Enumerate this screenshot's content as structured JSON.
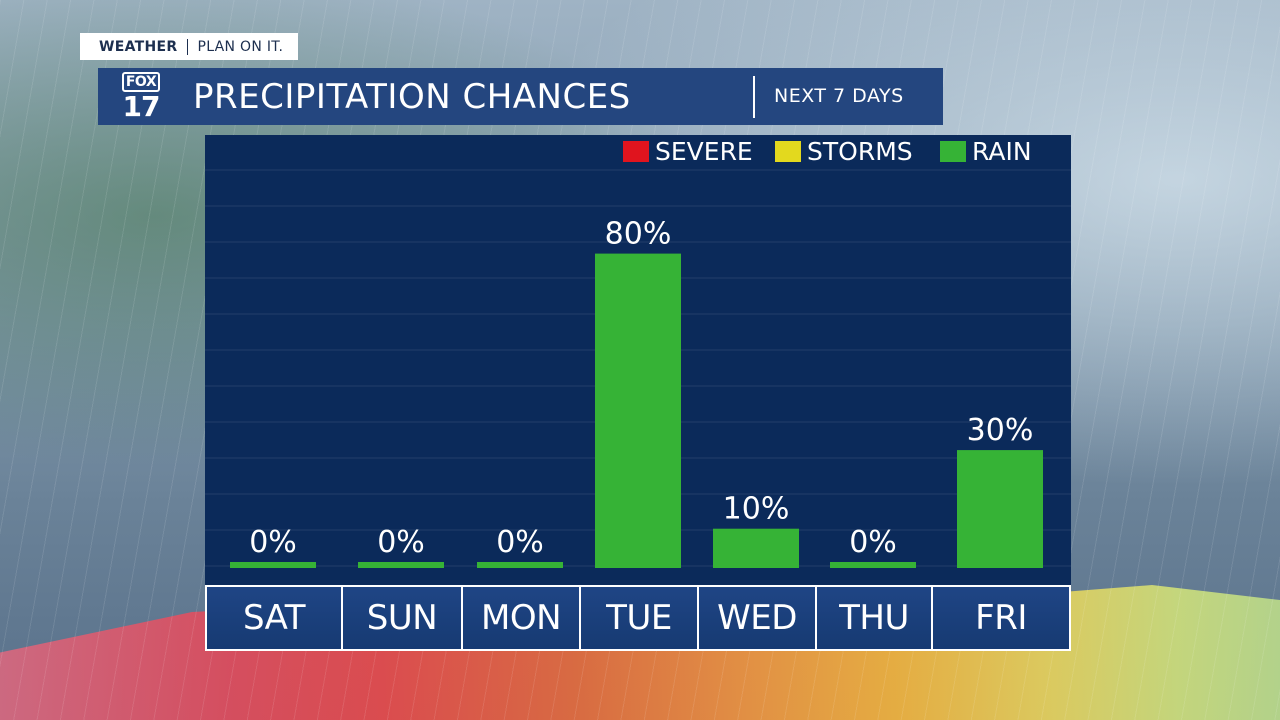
{
  "header": {
    "tag_primary": "WEATHER",
    "tag_secondary": "PLAN ON IT.",
    "logo_top": "FOX",
    "logo_bottom": "17",
    "title": "PRECIPITATION CHANCES",
    "subtitle": "NEXT 7 DAYS"
  },
  "colors": {
    "severe": "#e0141e",
    "storms": "#e3d91e",
    "rain": "#36b336",
    "panel": "#0b2a5a",
    "title_bar": "#24467f"
  },
  "chart_data": {
    "type": "bar",
    "title": "PRECIPITATION CHANCES",
    "categories": [
      "SAT",
      "SUN",
      "MON",
      "TUE",
      "WED",
      "THU",
      "FRI"
    ],
    "series": [
      {
        "name": "RAIN",
        "values": [
          0,
          0,
          0,
          80,
          10,
          0,
          30
        ]
      }
    ],
    "value_labels": [
      "0%",
      "0%",
      "0%",
      "80%",
      "10%",
      "0%",
      "30%"
    ],
    "legend": {
      "placement": "top-right",
      "items": [
        {
          "label": "SEVERE",
          "color": "#e0141e"
        },
        {
          "label": "STORMS",
          "color": "#e3d91e"
        },
        {
          "label": "RAIN",
          "color": "#36b336"
        }
      ]
    },
    "ylim": [
      0,
      100
    ],
    "grid": true
  }
}
